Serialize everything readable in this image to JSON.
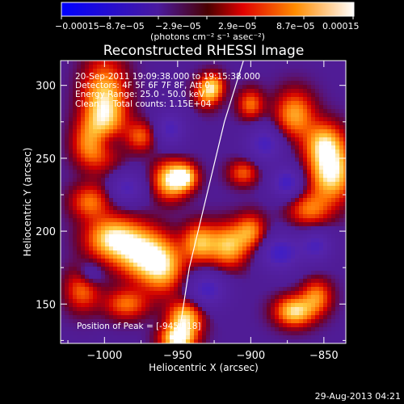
{
  "colorbar": {
    "tick_labels": [
      "−0.00015",
      "−8.7e−05",
      "−2.9e−05",
      "2.9e−05",
      "8.7e−05",
      "0.00015"
    ],
    "unit_label": "(photons cm⁻² s⁻¹ asec⁻²)"
  },
  "chart_data": {
    "type": "heatmap",
    "title": "Reconstructed RHESSI Image",
    "xlabel": "Heliocentric X (arcsec)",
    "ylabel": "Heliocentric Y (arcsec)",
    "xlim": [
      -1030,
      -835
    ],
    "ylim": [
      123,
      317
    ],
    "x_ticks": [
      -1000,
      -950,
      -900,
      -850
    ],
    "x_tick_labels": [
      "−1000",
      "−950",
      "−900",
      "−850"
    ],
    "y_ticks": [
      150,
      200,
      250,
      300
    ],
    "y_tick_labels": [
      "150",
      "200",
      "250",
      "300"
    ],
    "value_range": [
      -0.00015,
      0.00015
    ],
    "colormap": [
      "#0000ff",
      "#5a1ea0",
      "#ff2000",
      "#ff8800",
      "#ffffff"
    ],
    "annotations": [
      "20-Sep-2011 19:09:38.000 to 19:15:38.000",
      "Detectors: 4F 5F 6F 7F 8F, Att 0",
      "Energy Range: 25.0 - 50.0 keV",
      "Clean     Total counts: 1.15E+04"
    ],
    "peak_label": "Position of Peak = [-945,218]",
    "limb_line": {
      "x": [
        -950,
        -942,
        -930,
        -918,
        -905
      ],
      "y": [
        123,
        175,
        225,
        275,
        317
      ]
    },
    "blobs": [
      {
        "x": -1000,
        "y": 283,
        "sx": 10,
        "sy": 22,
        "v": 1.0
      },
      {
        "x": -1010,
        "y": 260,
        "sx": 8,
        "sy": 10,
        "v": 0.6
      },
      {
        "x": -975,
        "y": 265,
        "sx": 7,
        "sy": 7,
        "v": 0.5
      },
      {
        "x": -955,
        "y": 235,
        "sx": 8,
        "sy": 9,
        "v": 0.9
      },
      {
        "x": -945,
        "y": 237,
        "sx": 6,
        "sy": 6,
        "v": 0.8
      },
      {
        "x": -1010,
        "y": 220,
        "sx": 9,
        "sy": 8,
        "v": 0.55
      },
      {
        "x": -995,
        "y": 195,
        "sx": 12,
        "sy": 10,
        "v": 0.9
      },
      {
        "x": -975,
        "y": 185,
        "sx": 12,
        "sy": 12,
        "v": 0.9
      },
      {
        "x": -960,
        "y": 175,
        "sx": 10,
        "sy": 12,
        "v": 0.75
      },
      {
        "x": -935,
        "y": 192,
        "sx": 8,
        "sy": 9,
        "v": 0.75
      },
      {
        "x": -915,
        "y": 190,
        "sx": 9,
        "sy": 10,
        "v": 0.8
      },
      {
        "x": -900,
        "y": 200,
        "sx": 7,
        "sy": 8,
        "v": 0.6
      },
      {
        "x": -1015,
        "y": 160,
        "sx": 8,
        "sy": 10,
        "v": 0.55
      },
      {
        "x": -985,
        "y": 150,
        "sx": 10,
        "sy": 7,
        "v": 0.55
      },
      {
        "x": -945,
        "y": 140,
        "sx": 8,
        "sy": 8,
        "v": 0.9
      },
      {
        "x": -950,
        "y": 126,
        "sx": 8,
        "sy": 6,
        "v": 1.0
      },
      {
        "x": -870,
        "y": 145,
        "sx": 9,
        "sy": 7,
        "v": 0.9
      },
      {
        "x": -855,
        "y": 155,
        "sx": 7,
        "sy": 8,
        "v": 0.6
      },
      {
        "x": -930,
        "y": 295,
        "sx": 6,
        "sy": 7,
        "v": 0.65
      },
      {
        "x": -925,
        "y": 300,
        "sx": 5,
        "sy": 6,
        "v": 0.5
      },
      {
        "x": -900,
        "y": 287,
        "sx": 6,
        "sy": 7,
        "v": 0.55
      },
      {
        "x": -870,
        "y": 280,
        "sx": 9,
        "sy": 11,
        "v": 0.7
      },
      {
        "x": -850,
        "y": 260,
        "sx": 9,
        "sy": 10,
        "v": 0.75
      },
      {
        "x": -845,
        "y": 240,
        "sx": 10,
        "sy": 13,
        "v": 1.0
      },
      {
        "x": -860,
        "y": 215,
        "sx": 10,
        "sy": 8,
        "v": 0.55
      },
      {
        "x": -905,
        "y": 240,
        "sx": 7,
        "sy": 6,
        "v": 0.5
      },
      {
        "x": -1000,
        "y": 262,
        "sx": 9,
        "sy": 7,
        "v": -0.5
      },
      {
        "x": -955,
        "y": 270,
        "sx": 8,
        "sy": 9,
        "v": -0.45
      },
      {
        "x": -890,
        "y": 260,
        "sx": 9,
        "sy": 9,
        "v": -0.5
      },
      {
        "x": -875,
        "y": 233,
        "sx": 8,
        "sy": 8,
        "v": -0.55
      },
      {
        "x": -930,
        "y": 160,
        "sx": 10,
        "sy": 9,
        "v": -0.5
      },
      {
        "x": -880,
        "y": 185,
        "sx": 10,
        "sy": 9,
        "v": -0.55
      },
      {
        "x": -855,
        "y": 190,
        "sx": 8,
        "sy": 8,
        "v": -0.45
      },
      {
        "x": -985,
        "y": 230,
        "sx": 9,
        "sy": 8,
        "v": -0.45
      },
      {
        "x": -1010,
        "y": 170,
        "sx": 6,
        "sy": 6,
        "v": -0.35
      }
    ]
  },
  "footer": {
    "timestamp": "29-Aug-2013 04:21"
  }
}
